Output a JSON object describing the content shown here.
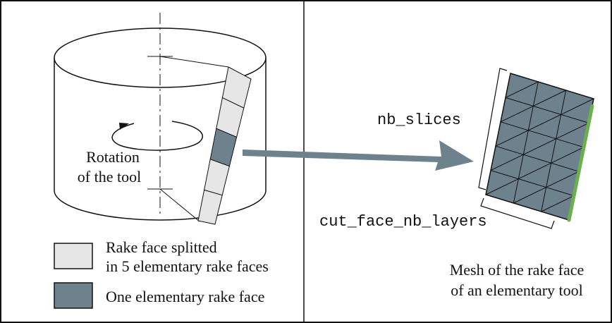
{
  "left_panel": {
    "rotation_label_line1": "Rotation",
    "rotation_label_line2": "of the tool",
    "legend": {
      "light": {
        "line1": "Rake face splitted",
        "line2": "in 5 elementary rake faces",
        "color": "#e6e6e6"
      },
      "dark": {
        "label": "One elementary rake face",
        "color": "#6e828e"
      }
    },
    "rake_face_segments": 5
  },
  "right_panel": {
    "slices_label": "nb_slices",
    "layers_label": "cut_face_nb_layers",
    "caption_line1": "Mesh of the rake face",
    "caption_line2": "of an elementary tool",
    "mesh_color": "#6e828e",
    "cut_edge_color": "#6ab04c",
    "mesh_columns": 3,
    "mesh_rows": 5
  },
  "arrow_color": "#6e828e"
}
